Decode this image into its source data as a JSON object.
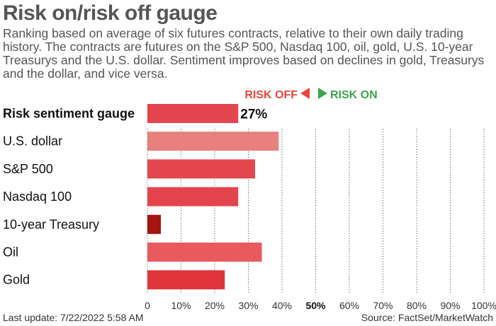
{
  "header": {
    "title": "Risk on/risk off gauge",
    "subtitle": "Ranking based on average of six futures contracts, relative to their own daily trading history. The contracts are futures on the S&P 500, Nasdaq 100, oil, gold, U.S. 10-year Treasurys and the U.S. dollar. Sentiment improves based on declines in gold, Treasurys and the dollar, and vice versa."
  },
  "legend": {
    "risk_off": "RISK OFF",
    "risk_on": "RISK ON",
    "risk_off_color": "#e8463c",
    "risk_on_color": "#3aa64c",
    "placement": "top-right"
  },
  "chart_data": {
    "type": "bar",
    "orientation": "horizontal",
    "categories": [
      "Risk sentiment gauge",
      "U.S. dollar",
      "S&P 500",
      "Nasdaq 100",
      "10-year Treasury",
      "Oil",
      "Gold"
    ],
    "values": [
      27,
      39,
      32,
      27,
      4,
      34,
      23
    ],
    "value_labels": [
      "27%",
      "",
      "",
      "",
      "",
      "",
      ""
    ],
    "colors": [
      "#e4444f",
      "#e8807d",
      "#e4464d",
      "#e3444b",
      "#a51410",
      "#e85a5e",
      "#e0363b"
    ],
    "xlim": [
      0,
      100
    ],
    "xticks": [
      "0",
      "10%",
      "20%",
      "30%",
      "40%",
      "50%",
      "60%",
      "70%",
      "80%",
      "90%",
      "100%"
    ],
    "bold_tick": "50%",
    "grid": "vertical dashed"
  },
  "footer": {
    "last_update": "Last update: 7/22/2022 5:58 AM",
    "source": "Source: FactSet/MarketWatch"
  }
}
